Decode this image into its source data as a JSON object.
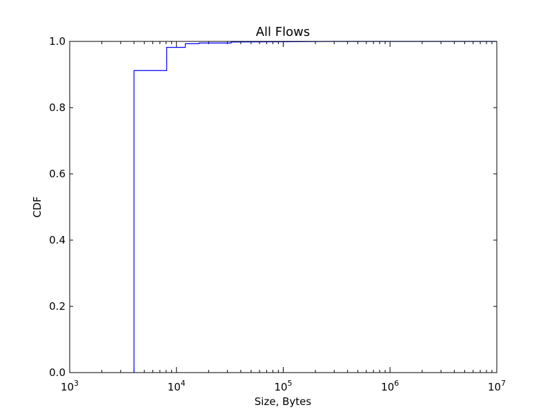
{
  "chart_data": {
    "type": "line",
    "title": "All Flows",
    "xlabel": "Size, Bytes",
    "ylabel": "CDF",
    "xscale": "log",
    "xlim": [
      1000,
      10000000
    ],
    "ylim": [
      0,
      1.0
    ],
    "grid": false,
    "series": [
      {
        "color": "#0000ff",
        "step": true,
        "points": [
          {
            "x": 4000,
            "y": 0.0
          },
          {
            "x": 4000,
            "y": 0.912
          },
          {
            "x": 8100,
            "y": 0.912
          },
          {
            "x": 8100,
            "y": 0.982
          },
          {
            "x": 12100,
            "y": 0.982
          },
          {
            "x": 12100,
            "y": 0.993
          },
          {
            "x": 16300,
            "y": 0.993
          },
          {
            "x": 16300,
            "y": 0.995
          },
          {
            "x": 32500,
            "y": 0.995
          },
          {
            "x": 32500,
            "y": 0.998
          },
          {
            "x": 100000,
            "y": 0.999
          },
          {
            "x": 300000,
            "y": 1.0
          },
          {
            "x": 10000000,
            "y": 1.0
          }
        ]
      }
    ],
    "y_ticks": [
      "0.0",
      "0.2",
      "0.4",
      "0.6",
      "0.8",
      "1.0"
    ],
    "x_ticks": [
      {
        "base": "10",
        "exp": "3"
      },
      {
        "base": "10",
        "exp": "4"
      },
      {
        "base": "10",
        "exp": "5"
      },
      {
        "base": "10",
        "exp": "6"
      },
      {
        "base": "10",
        "exp": "7"
      }
    ]
  }
}
